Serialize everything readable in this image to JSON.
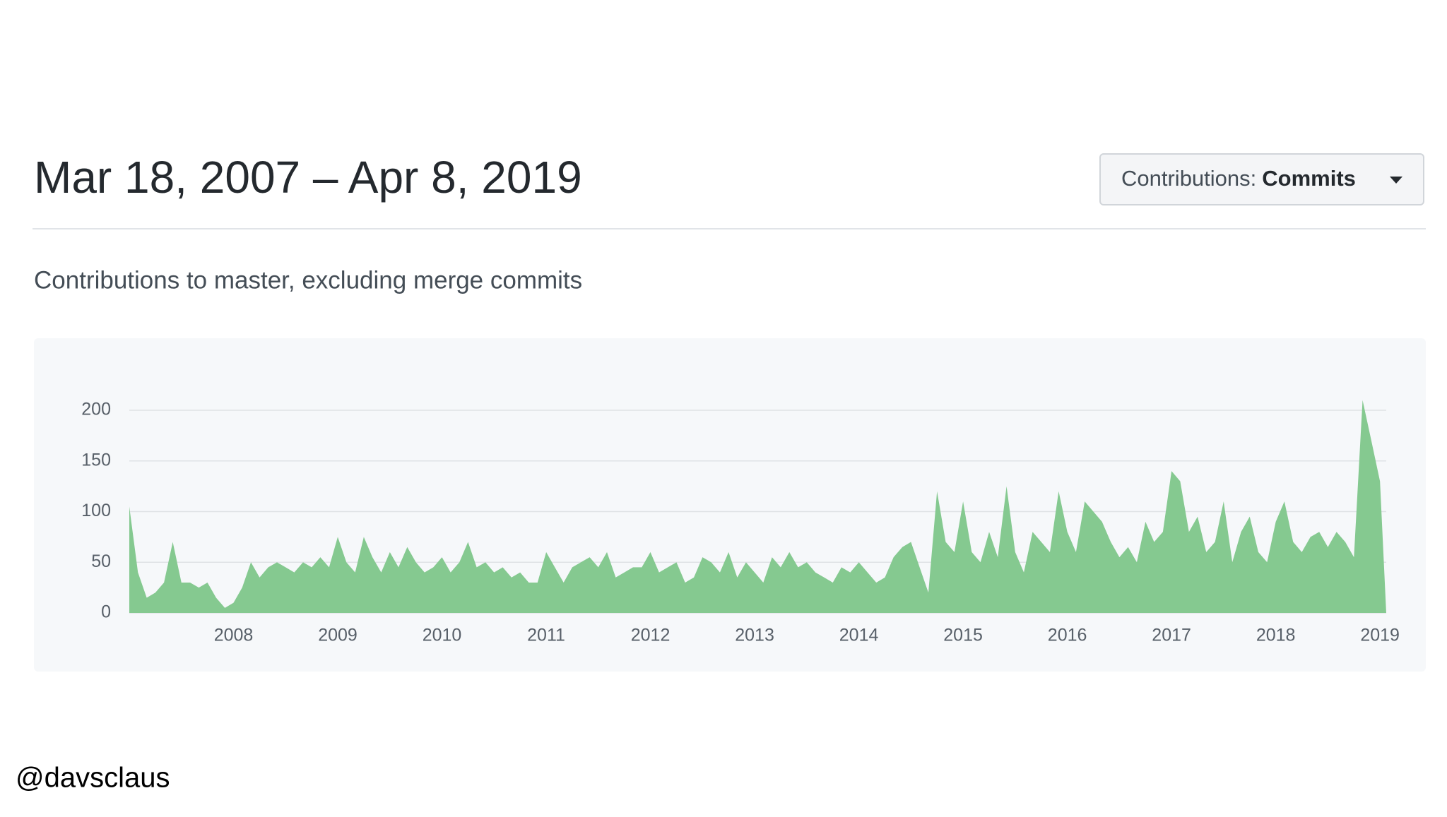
{
  "header": {
    "title": "Mar 18, 2007 – Apr 8, 2019",
    "dropdown": {
      "label": "Contributions:",
      "value": "Commits"
    }
  },
  "subtitle": "Contributions to master, excluding merge commits",
  "footer": {
    "handle": "@davsclaus"
  },
  "chart_data": {
    "type": "area",
    "color": "#85c990",
    "grid": true,
    "xlim": [
      2007,
      2019.06
    ],
    "ylim": [
      0,
      200
    ],
    "xticks": [
      2008,
      2009,
      2010,
      2011,
      2012,
      2013,
      2014,
      2015,
      2016,
      2017,
      2018,
      2019
    ],
    "yticks": [
      0,
      50,
      100,
      150,
      200
    ],
    "x": [
      2007,
      2007.083,
      2007.167,
      2007.25,
      2007.333,
      2007.417,
      2007.5,
      2007.583,
      2007.667,
      2007.75,
      2007.833,
      2007.917,
      2008,
      2008.083,
      2008.167,
      2008.25,
      2008.333,
      2008.417,
      2008.5,
      2008.583,
      2008.667,
      2008.75,
      2008.833,
      2008.917,
      2009,
      2009.083,
      2009.167,
      2009.25,
      2009.333,
      2009.417,
      2009.5,
      2009.583,
      2009.667,
      2009.75,
      2009.833,
      2009.917,
      2010,
      2010.083,
      2010.167,
      2010.25,
      2010.333,
      2010.417,
      2010.5,
      2010.583,
      2010.667,
      2010.75,
      2010.833,
      2010.917,
      2011,
      2011.083,
      2011.167,
      2011.25,
      2011.333,
      2011.417,
      2011.5,
      2011.583,
      2011.667,
      2011.75,
      2011.833,
      2011.917,
      2012,
      2012.083,
      2012.167,
      2012.25,
      2012.333,
      2012.417,
      2012.5,
      2012.583,
      2012.667,
      2012.75,
      2012.833,
      2012.917,
      2013,
      2013.083,
      2013.167,
      2013.25,
      2013.333,
      2013.417,
      2013.5,
      2013.583,
      2013.667,
      2013.75,
      2013.833,
      2013.917,
      2014,
      2014.083,
      2014.167,
      2014.25,
      2014.333,
      2014.417,
      2014.5,
      2014.583,
      2014.667,
      2014.75,
      2014.833,
      2014.917,
      2015,
      2015.083,
      2015.167,
      2015.25,
      2015.333,
      2015.417,
      2015.5,
      2015.583,
      2015.667,
      2015.75,
      2015.833,
      2015.917,
      2016,
      2016.083,
      2016.167,
      2016.25,
      2016.333,
      2016.417,
      2016.5,
      2016.583,
      2016.667,
      2016.75,
      2016.833,
      2016.917,
      2017,
      2017.083,
      2017.167,
      2017.25,
      2017.333,
      2017.417,
      2017.5,
      2017.583,
      2017.667,
      2017.75,
      2017.833,
      2017.917,
      2018,
      2018.083,
      2018.167,
      2018.25,
      2018.333,
      2018.417,
      2018.5,
      2018.583,
      2018.667,
      2018.75,
      2018.833,
      2018.917,
      2019,
      2019.06
    ],
    "values": [
      105,
      40,
      15,
      20,
      30,
      70,
      30,
      30,
      25,
      30,
      15,
      5,
      10,
      25,
      50,
      35,
      45,
      50,
      45,
      40,
      50,
      45,
      55,
      45,
      75,
      50,
      40,
      75,
      55,
      40,
      60,
      45,
      65,
      50,
      40,
      45,
      55,
      40,
      50,
      70,
      45,
      50,
      40,
      45,
      35,
      40,
      30,
      30,
      60,
      45,
      30,
      45,
      50,
      55,
      45,
      60,
      35,
      40,
      45,
      45,
      60,
      40,
      45,
      50,
      30,
      35,
      55,
      50,
      40,
      60,
      35,
      50,
      40,
      30,
      55,
      45,
      60,
      45,
      50,
      40,
      35,
      30,
      45,
      40,
      50,
      40,
      30,
      35,
      55,
      65,
      70,
      45,
      20,
      120,
      70,
      60,
      110,
      60,
      50,
      80,
      55,
      125,
      60,
      40,
      80,
      70,
      60,
      120,
      80,
      60,
      110,
      100,
      90,
      70,
      55,
      65,
      50,
      90,
      70,
      80,
      140,
      130,
      80,
      95,
      60,
      70,
      110,
      50,
      80,
      95,
      60,
      50,
      90,
      110,
      70,
      60,
      75,
      80,
      65,
      80,
      70,
      55,
      210,
      170,
      130,
      0
    ]
  }
}
